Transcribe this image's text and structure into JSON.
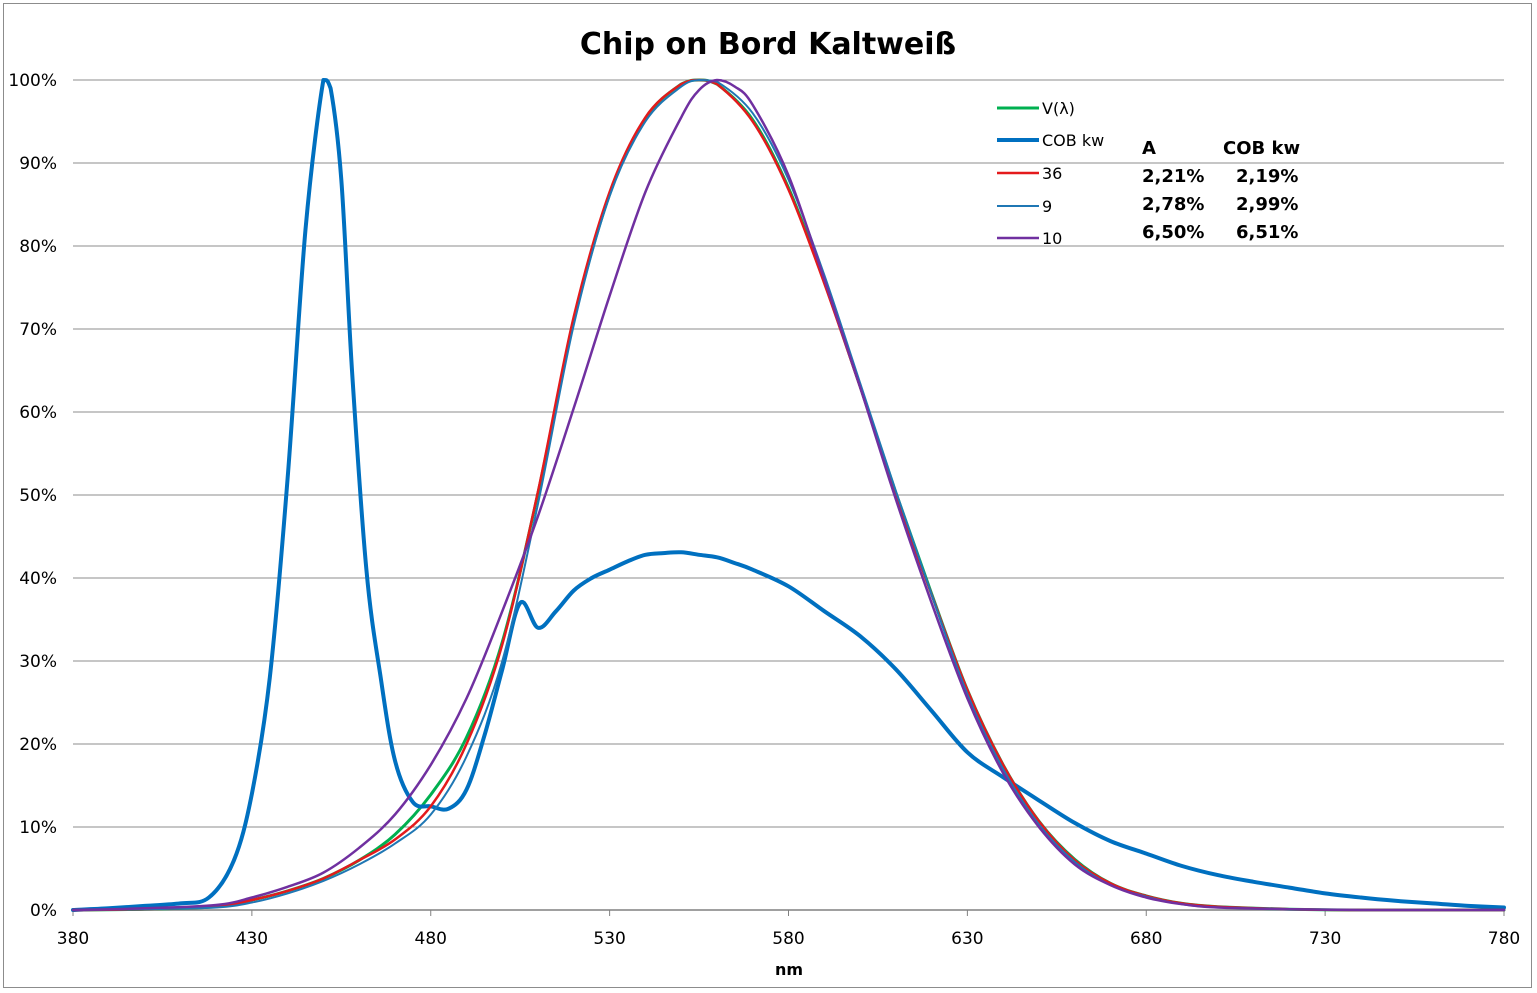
{
  "chart_data": {
    "type": "line",
    "title": "Chip on Bord Kaltweiß",
    "xlabel": "nm",
    "ylabel": "",
    "xlim": [
      380,
      780
    ],
    "ylim": [
      0,
      100
    ],
    "x_ticks": [
      "380",
      "430",
      "480",
      "530",
      "580",
      "630",
      "680",
      "730",
      "780"
    ],
    "y_ticks": [
      "0%",
      "10%",
      "20%",
      "30%",
      "40%",
      "50%",
      "60%",
      "70%",
      "80%",
      "90%",
      "100%"
    ],
    "grid": true,
    "legend_position": "top-right",
    "series": [
      {
        "name": "V(λ)",
        "color": "#00b050",
        "width": 3,
        "x": [
          380,
          400,
          420,
          430,
          440,
          450,
          460,
          470,
          480,
          490,
          500,
          510,
          520,
          530,
          540,
          550,
          555,
          560,
          570,
          580,
          590,
          600,
          610,
          620,
          630,
          640,
          650,
          660,
          670,
          680,
          690,
          700,
          720,
          740,
          760,
          780
        ],
        "y": [
          0,
          0.1,
          0.4,
          1.2,
          2.3,
          3.8,
          6.0,
          9.1,
          13.9,
          20.8,
          32.3,
          50.3,
          71.0,
          86.2,
          95.4,
          99.5,
          100,
          99.5,
          95.2,
          87.0,
          75.7,
          63.1,
          50.3,
          38.1,
          26.5,
          17.5,
          10.7,
          6.1,
          3.2,
          1.7,
          0.8,
          0.4,
          0.1,
          0,
          0,
          0
        ]
      },
      {
        "name": "COB kw",
        "color": "#0070c0",
        "width": 4,
        "x": [
          380,
          390,
          400,
          410,
          418,
          425,
          430,
          435,
          440,
          445,
          450,
          452,
          455,
          458,
          462,
          466,
          470,
          475,
          480,
          485,
          490,
          495,
          500,
          505,
          510,
          515,
          520,
          525,
          530,
          535,
          540,
          545,
          550,
          555,
          560,
          565,
          570,
          580,
          590,
          600,
          610,
          620,
          630,
          640,
          650,
          660,
          670,
          680,
          690,
          700,
          710,
          720,
          730,
          740,
          750,
          760,
          770,
          780
        ],
        "y": [
          0,
          0.2,
          0.5,
          0.8,
          1.5,
          6,
          14,
          28,
          52,
          82,
          100,
          99,
          88,
          65,
          41,
          28,
          18,
          13,
          12.5,
          12.2,
          14.5,
          21,
          29,
          37,
          34,
          36,
          38.5,
          40,
          41,
          42,
          42.8,
          43,
          43.1,
          42.8,
          42.5,
          41.8,
          41,
          39,
          36,
          33,
          29,
          24,
          19,
          16,
          13.2,
          10.5,
          8.3,
          6.8,
          5.3,
          4.2,
          3.4,
          2.7,
          2.0,
          1.5,
          1.1,
          0.8,
          0.5,
          0.3
        ]
      },
      {
        "name": "36",
        "color": "#e41a1c",
        "width": 2.5,
        "x": [
          380,
          400,
          420,
          430,
          440,
          450,
          460,
          470,
          480,
          490,
          500,
          510,
          520,
          530,
          540,
          550,
          555,
          560,
          570,
          580,
          590,
          600,
          610,
          620,
          630,
          640,
          650,
          660,
          670,
          680,
          690,
          700,
          720,
          740,
          760,
          780
        ],
        "y": [
          0,
          0.1,
          0.4,
          1.2,
          2.3,
          3.8,
          6.0,
          8.5,
          12.5,
          20.0,
          32.0,
          50.5,
          71.5,
          86.5,
          95.5,
          99.5,
          100,
          99.5,
          95.0,
          86.8,
          75.5,
          63.0,
          50.0,
          38.0,
          26.5,
          17.5,
          10.7,
          6.0,
          3.2,
          1.7,
          0.8,
          0.4,
          0.1,
          0,
          0,
          0
        ]
      },
      {
        "name": "9",
        "color": "#1f77b4",
        "width": 2,
        "x": [
          380,
          400,
          420,
          430,
          440,
          450,
          460,
          470,
          480,
          490,
          500,
          510,
          520,
          530,
          540,
          550,
          555,
          560,
          570,
          580,
          590,
          600,
          610,
          620,
          630,
          640,
          650,
          660,
          670,
          680,
          690,
          700,
          720,
          740,
          760,
          780
        ],
        "y": [
          0,
          0.1,
          0.3,
          0.9,
          2.0,
          3.5,
          5.5,
          8.0,
          11.5,
          18.5,
          30.0,
          49.0,
          70.5,
          86.0,
          95.0,
          99.2,
          100,
          99.8,
          96.0,
          88.0,
          76.5,
          63.5,
          50.5,
          38.0,
          26.0,
          17.0,
          10.3,
          5.8,
          3.0,
          1.6,
          0.7,
          0.3,
          0.1,
          0,
          0,
          0
        ]
      },
      {
        "name": "10",
        "color": "#7030a0",
        "width": 2.5,
        "x": [
          380,
          400,
          420,
          430,
          440,
          450,
          460,
          470,
          480,
          490,
          500,
          510,
          520,
          530,
          540,
          550,
          555,
          560,
          565,
          570,
          580,
          590,
          600,
          610,
          620,
          630,
          640,
          650,
          660,
          670,
          680,
          690,
          700,
          720,
          740,
          760,
          780
        ],
        "y": [
          0,
          0.2,
          0.6,
          1.5,
          2.8,
          4.5,
          7.5,
          11.5,
          17.5,
          25.5,
          36.0,
          47.5,
          60.5,
          74.0,
          86.5,
          95.5,
          98.8,
          100,
          99.2,
          97.0,
          88.5,
          76.0,
          63.0,
          49.5,
          37.0,
          25.5,
          16.5,
          10.0,
          5.5,
          3.0,
          1.5,
          0.7,
          0.3,
          0.1,
          0,
          0,
          0
        ]
      }
    ],
    "annotation_table": {
      "headers": [
        "A",
        "COB kw"
      ],
      "rows": [
        [
          "2,21%",
          "2,19%"
        ],
        [
          "2,78%",
          "2,99%"
        ],
        [
          "6,50%",
          "6,51%"
        ]
      ]
    }
  }
}
